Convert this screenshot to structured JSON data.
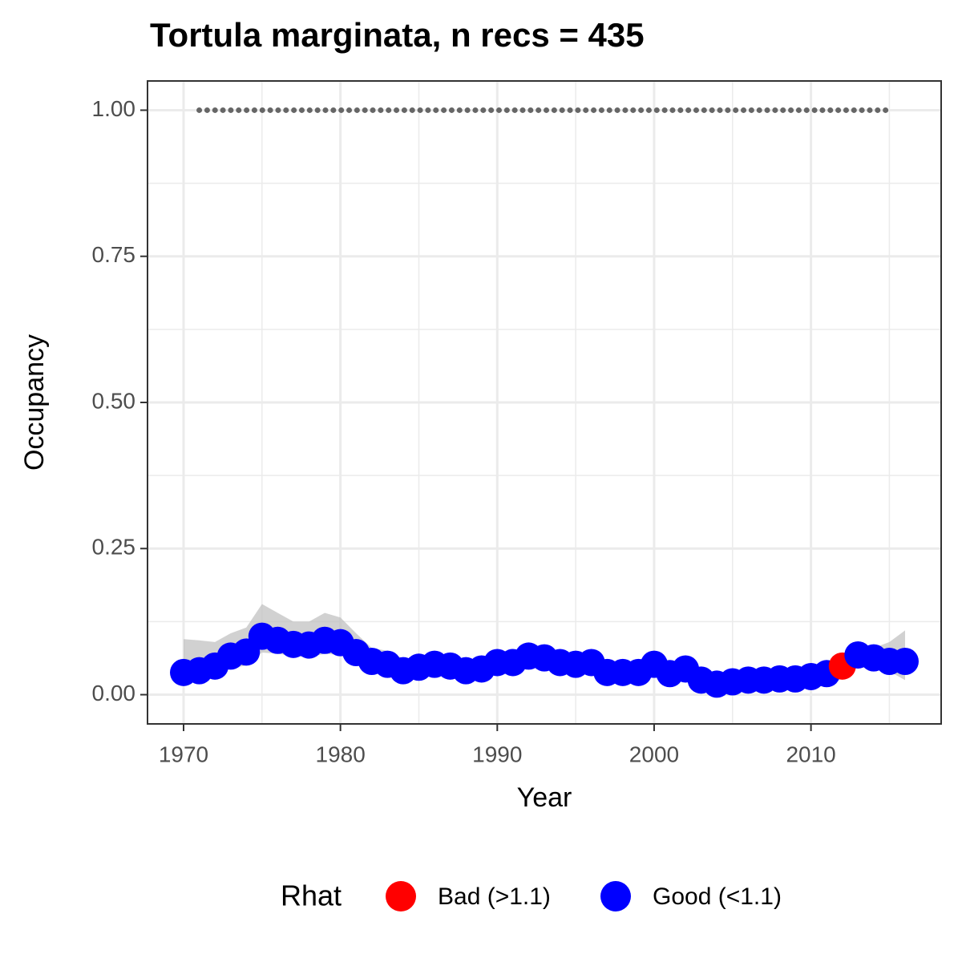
{
  "chart_data": {
    "type": "line",
    "title": "Tortula marginata, n recs = 435",
    "x_label": "Year",
    "y_label": "Occupancy",
    "x": [
      1970,
      1971,
      1972,
      1973,
      1974,
      1975,
      1976,
      1977,
      1978,
      1979,
      1980,
      1981,
      1982,
      1983,
      1984,
      1985,
      1986,
      1987,
      1988,
      1989,
      1990,
      1991,
      1992,
      1993,
      1994,
      1995,
      1996,
      1997,
      1998,
      1999,
      2000,
      2001,
      2002,
      2003,
      2004,
      2005,
      2006,
      2007,
      2008,
      2009,
      2010,
      2011,
      2012,
      2013,
      2014,
      2015,
      2016
    ],
    "values": [
      0.038,
      0.041,
      0.049,
      0.066,
      0.073,
      0.1,
      0.093,
      0.086,
      0.085,
      0.093,
      0.089,
      0.072,
      0.057,
      0.052,
      0.041,
      0.047,
      0.052,
      0.049,
      0.041,
      0.044,
      0.055,
      0.055,
      0.066,
      0.063,
      0.055,
      0.052,
      0.055,
      0.038,
      0.038,
      0.038,
      0.052,
      0.036,
      0.044,
      0.025,
      0.018,
      0.022,
      0.025,
      0.025,
      0.027,
      0.027,
      0.031,
      0.036,
      0.049,
      0.068,
      0.063,
      0.057,
      0.057
    ],
    "lower": [
      0.02,
      0.025,
      0.032,
      0.045,
      0.05,
      0.072,
      0.07,
      0.066,
      0.064,
      0.07,
      0.068,
      0.055,
      0.045,
      0.042,
      0.033,
      0.038,
      0.043,
      0.04,
      0.033,
      0.036,
      0.046,
      0.046,
      0.056,
      0.053,
      0.046,
      0.043,
      0.046,
      0.03,
      0.03,
      0.03,
      0.043,
      0.028,
      0.035,
      0.018,
      0.012,
      0.015,
      0.018,
      0.018,
      0.02,
      0.02,
      0.023,
      0.026,
      0.036,
      0.053,
      0.048,
      0.04,
      0.025
    ],
    "upper": [
      0.095,
      0.093,
      0.09,
      0.105,
      0.115,
      0.155,
      0.14,
      0.125,
      0.125,
      0.14,
      0.132,
      0.105,
      0.08,
      0.075,
      0.062,
      0.062,
      0.065,
      0.062,
      0.055,
      0.058,
      0.068,
      0.068,
      0.08,
      0.077,
      0.068,
      0.064,
      0.068,
      0.05,
      0.05,
      0.05,
      0.063,
      0.047,
      0.055,
      0.035,
      0.028,
      0.032,
      0.035,
      0.035,
      0.036,
      0.037,
      0.042,
      0.05,
      0.068,
      0.085,
      0.08,
      0.09,
      0.11
    ],
    "ribbon_color": "#bdbdbd",
    "line_color": "#0000ff",
    "rhat": [
      "Good (<1.1)",
      "Good (<1.1)",
      "Good (<1.1)",
      "Good (<1.1)",
      "Good (<1.1)",
      "Good (<1.1)",
      "Good (<1.1)",
      "Good (<1.1)",
      "Good (<1.1)",
      "Good (<1.1)",
      "Good (<1.1)",
      "Good (<1.1)",
      "Good (<1.1)",
      "Good (<1.1)",
      "Good (<1.1)",
      "Good (<1.1)",
      "Good (<1.1)",
      "Good (<1.1)",
      "Good (<1.1)",
      "Good (<1.1)",
      "Good (<1.1)",
      "Good (<1.1)",
      "Good (<1.1)",
      "Good (<1.1)",
      "Good (<1.1)",
      "Good (<1.1)",
      "Good (<1.1)",
      "Good (<1.1)",
      "Good (<1.1)",
      "Good (<1.1)",
      "Good (<1.1)",
      "Good (<1.1)",
      "Good (<1.1)",
      "Good (<1.1)",
      "Good (<1.1)",
      "Good (<1.1)",
      "Good (<1.1)",
      "Good (<1.1)",
      "Good (<1.1)",
      "Good (<1.1)",
      "Good (<1.1)",
      "Good (<1.1)",
      "Bad (>1.1)",
      "Good (<1.1)",
      "Good (<1.1)",
      "Good (<1.1)",
      "Good (<1.1)"
    ],
    "legend_title": "Rhat",
    "legend": [
      {
        "name": "Bad (>1.1)",
        "color": "#ff0000"
      },
      {
        "name": "Good (<1.1)",
        "color": "#0000ff"
      }
    ],
    "legend_position": "bottom",
    "dotted_line": {
      "x": [
        1971,
        2015
      ],
      "values": [
        1,
        1
      ],
      "color": "#666666"
    },
    "xlim": [
      1967.7,
      2018.3
    ],
    "ylim": [
      -0.05,
      1.05
    ],
    "xticks": [
      1970,
      1980,
      1990,
      2000,
      2010
    ],
    "yticks": [
      {
        "value": 0,
        "label": "0.00"
      },
      {
        "value": 0.25,
        "label": "0.25"
      },
      {
        "value": 0.5,
        "label": "0.50"
      },
      {
        "value": 0.75,
        "label": "0.75"
      },
      {
        "value": 1,
        "label": "1.00"
      }
    ],
    "x_minor_grid": [
      1975,
      1985,
      1995,
      2005,
      2015
    ],
    "y_minor_grid": [
      0.125,
      0.375,
      0.625,
      0.875
    ],
    "grid": true
  }
}
